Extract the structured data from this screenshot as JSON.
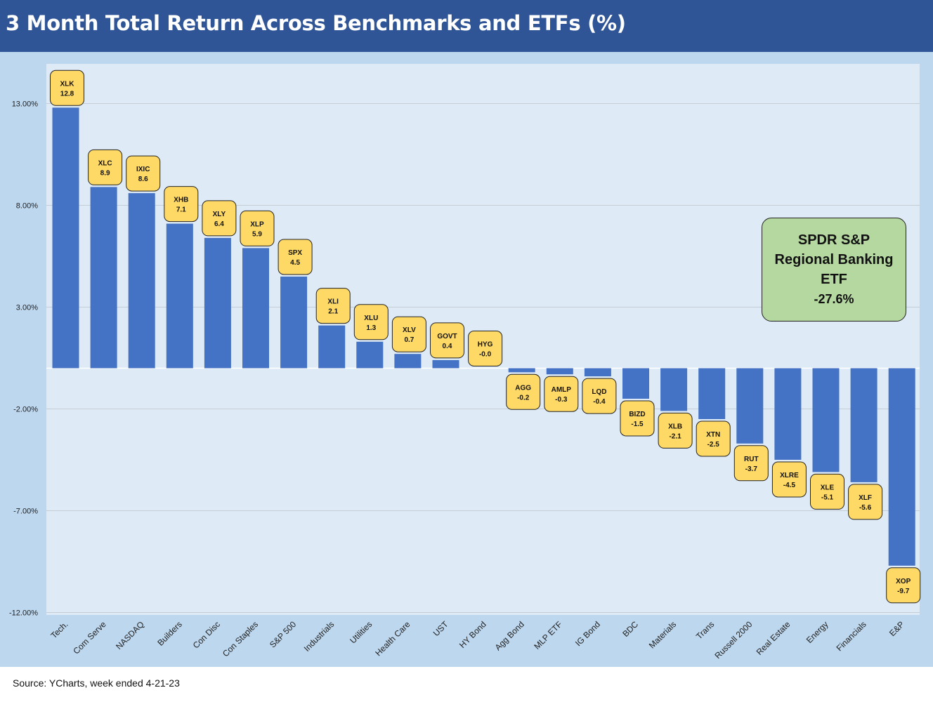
{
  "title": "3 Month Total Return Across Benchmarks and ETFs (%)",
  "source": "Source: YCharts, week ended 4-21-23",
  "colors": {
    "header": "#2f5597",
    "outer_background": "#bdd7ee",
    "plot_background": "#deebf7",
    "bar": "#4472c4",
    "label_box": "#ffd966",
    "callout": "#b5d7a0"
  },
  "callout": {
    "lines": [
      "SPDR S&P",
      "Regional Banking",
      "ETF"
    ],
    "value": "-27.6%"
  },
  "chart_data": {
    "type": "bar",
    "title": "3 Month Total Return Across Benchmarks and ETFs (%)",
    "categories": [
      "Tech.",
      "Com Serve",
      "NASDAQ",
      "Builders",
      "Con Disc",
      "Con Staples",
      "S&P 500",
      "Industrials",
      "Utilities",
      "Health Care",
      "UST",
      "HY Bond",
      "Agg Bond",
      "MLP ETF",
      "IG Bond",
      "BDC",
      "Materials",
      "Trans",
      "Russell 2000",
      "Real Estate",
      "Energy",
      "Financials",
      "E&P"
    ],
    "tickers": [
      "XLK",
      "XLC",
      "IXIC",
      "XHB",
      "XLY",
      "XLP",
      "SPX",
      "XLI",
      "XLU",
      "XLV",
      "GOVT",
      "HYG",
      "AGG",
      "AMLP",
      "LQD",
      "BIZD",
      "XLB",
      "XTN",
      "RUT",
      "XLRE",
      "XLE",
      "XLF",
      "XOP"
    ],
    "values": [
      12.8,
      8.9,
      8.6,
      7.1,
      6.4,
      5.9,
      4.5,
      2.1,
      1.3,
      0.7,
      0.4,
      -0.0,
      -0.2,
      -0.3,
      -0.4,
      -1.5,
      -2.1,
      -2.5,
      -3.7,
      -4.5,
      -5.1,
      -5.6,
      -9.7
    ],
    "value_labels": [
      "12.8",
      "8.9",
      "8.6",
      "7.1",
      "6.4",
      "5.9",
      "4.5",
      "2.1",
      "1.3",
      "0.7",
      "0.4",
      "-0.0",
      "-0.2",
      "-0.3",
      "-0.4",
      "-1.5",
      "-2.1",
      "-2.5",
      "-3.7",
      "-4.5",
      "-5.1",
      "-5.6",
      "-9.7"
    ],
    "ylim": [
      -12,
      15
    ],
    "yticks": [
      13,
      8,
      3,
      -2,
      -7,
      -12
    ],
    "ytick_labels": [
      "13.00%",
      "8.00%",
      "3.00%",
      "-2.00%",
      "-7.00%",
      "-12.00%"
    ],
    "xlabel": "",
    "ylabel": "",
    "grid": true,
    "legend": "none"
  }
}
